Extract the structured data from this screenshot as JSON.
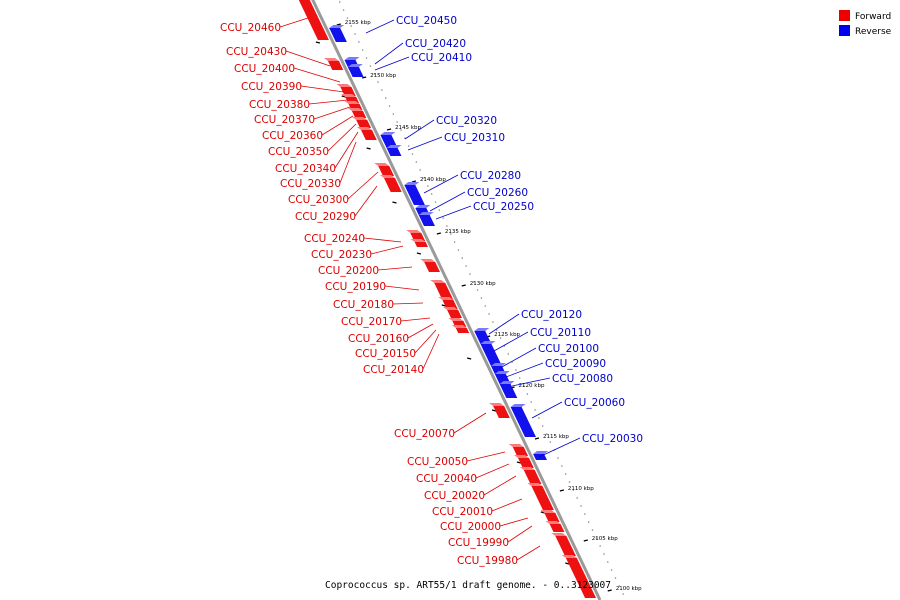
{
  "caption": "Coprococcus sp. ART55/1 draft genome. - 0..3123007",
  "legend": [
    {
      "label": "Forward",
      "color": "#ee0000"
    },
    {
      "label": "Reverse",
      "color": "#0000ee"
    }
  ],
  "ticks": [
    "2100 kbp",
    "2105 kbp",
    "2110 kbp",
    "2115 kbp",
    "2120 kbp",
    "2125 kbp",
    "2130 kbp",
    "2135 kbp",
    "2140 kbp",
    "2145 kbp",
    "2150 kbp",
    "2155 kbp"
  ],
  "forward_genes": [
    "CCU_20460",
    "CCU_20430",
    "CCU_20400",
    "CCU_20390",
    "CCU_20380",
    "CCU_20370",
    "CCU_20360",
    "CCU_20350",
    "CCU_20340",
    "CCU_20330",
    "CCU_20300",
    "CCU_20290",
    "CCU_20240",
    "CCU_20230",
    "CCU_20200",
    "CCU_20190",
    "CCU_20180",
    "CCU_20170",
    "CCU_20160",
    "CCU_20150",
    "CCU_20140",
    "CCU_20070",
    "CCU_20050",
    "CCU_20040",
    "CCU_20020",
    "CCU_20010",
    "CCU_20000",
    "CCU_19990",
    "CCU_19980"
  ],
  "reverse_genes": [
    "CCU_20450",
    "CCU_20420",
    "CCU_20410",
    "CCU_20320",
    "CCU_20310",
    "CCU_20280",
    "CCU_20260",
    "CCU_20250",
    "CCU_20120",
    "CCU_20110",
    "CCU_20100",
    "CCU_20090",
    "CCU_20080",
    "CCU_20060",
    "CCU_20030"
  ]
}
